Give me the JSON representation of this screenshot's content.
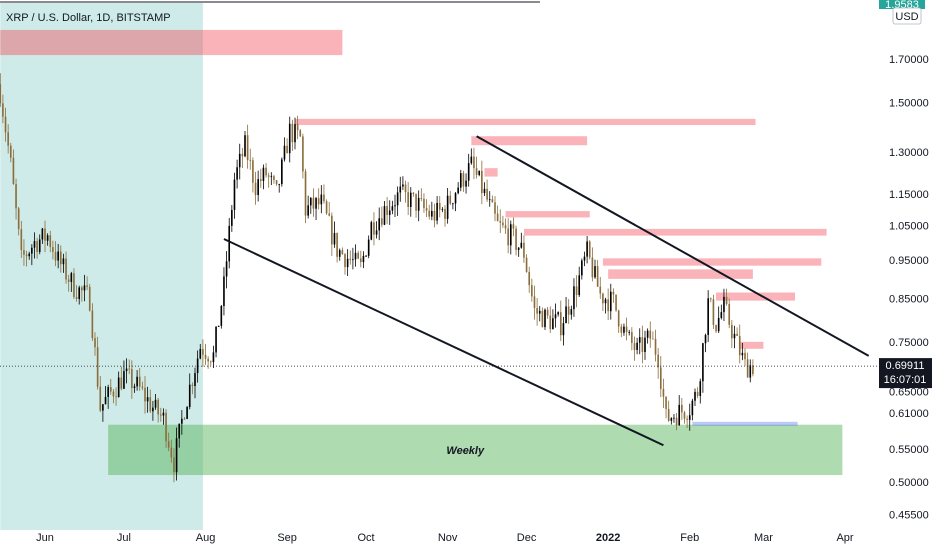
{
  "chart_data": {
    "type": "candlestick",
    "title": "XRP / U.S. Dollar, 1D, BITSTAMP",
    "currency": "USD",
    "top_tag": "1.9583",
    "y_scale": "log",
    "ylim": [
      0.435,
      2.0
    ],
    "y_ticks": [
      "1.70000",
      "1.50000",
      "1.30000",
      "1.15000",
      "1.05000",
      "0.95000",
      "0.85000",
      "0.75000",
      "0.65000",
      "0.61000",
      "0.55000",
      "0.50000",
      "0.45500"
    ],
    "x_ticks": [
      {
        "label": "Jun",
        "date": "2021-06-01"
      },
      {
        "label": "Jul",
        "date": "2021-07-01"
      },
      {
        "label": "Aug",
        "date": "2021-08-01"
      },
      {
        "label": "Sep",
        "date": "2021-09-01"
      },
      {
        "label": "Oct",
        "date": "2021-10-01"
      },
      {
        "label": "Nov",
        "date": "2021-11-01"
      },
      {
        "label": "Dec",
        "date": "2021-12-01"
      },
      {
        "label": "2022",
        "date": "2022-01-01"
      },
      {
        "label": "Feb",
        "date": "2022-02-01"
      },
      {
        "label": "Mar",
        "date": "2022-03-01"
      },
      {
        "label": "Apr",
        "date": "2022-04-01"
      }
    ],
    "last_price": "0.69911",
    "last_price_value": 0.69911,
    "countdown": "16:07:01",
    "colors": {
      "up": "#000000",
      "down": "#8a6d3b",
      "teal": "#b2dfdb",
      "green": "#81c784",
      "red": "#f28b82",
      "blue": "#90a4e8",
      "price_tag": "#131722",
      "usd_tag": "#26a69a"
    },
    "close_path": [
      [
        "2021-05-15",
        1.55
      ],
      [
        "2021-05-19",
        1.25
      ],
      [
        "2021-05-23",
        0.95
      ],
      [
        "2021-05-28",
        1.0
      ],
      [
        "2021-06-02",
        1.02
      ],
      [
        "2021-06-06",
        0.95
      ],
      [
        "2021-06-12",
        0.88
      ],
      [
        "2021-06-18",
        0.85
      ],
      [
        "2021-06-22",
        0.62
      ],
      [
        "2021-06-25",
        0.64
      ],
      [
        "2021-07-01",
        0.68
      ],
      [
        "2021-07-06",
        0.66
      ],
      [
        "2021-07-12",
        0.62
      ],
      [
        "2021-07-16",
        0.6
      ],
      [
        "2021-07-20",
        0.53
      ],
      [
        "2021-07-24",
        0.62
      ],
      [
        "2021-07-30",
        0.74
      ],
      [
        "2021-08-04",
        0.72
      ],
      [
        "2021-08-08",
        0.88
      ],
      [
        "2021-08-12",
        1.2
      ],
      [
        "2021-08-16",
        1.32
      ],
      [
        "2021-08-20",
        1.18
      ],
      [
        "2021-08-24",
        1.22
      ],
      [
        "2021-08-28",
        1.15
      ],
      [
        "2021-09-02",
        1.38
      ],
      [
        "2021-09-06",
        1.35
      ],
      [
        "2021-09-08",
        1.1
      ],
      [
        "2021-09-14",
        1.12
      ],
      [
        "2021-09-20",
        0.98
      ],
      [
        "2021-09-25",
        0.95
      ],
      [
        "2021-09-29",
        0.93
      ],
      [
        "2021-10-03",
        1.05
      ],
      [
        "2021-10-08",
        1.1
      ],
      [
        "2021-10-14",
        1.15
      ],
      [
        "2021-10-20",
        1.12
      ],
      [
        "2021-10-26",
        1.08
      ],
      [
        "2021-10-31",
        1.1
      ],
      [
        "2021-11-05",
        1.18
      ],
      [
        "2021-11-10",
        1.25
      ],
      [
        "2021-11-15",
        1.15
      ],
      [
        "2021-11-20",
        1.05
      ],
      [
        "2021-11-25",
        1.02
      ],
      [
        "2021-11-30",
        0.97
      ],
      [
        "2021-12-04",
        0.82
      ],
      [
        "2021-12-09",
        0.8
      ],
      [
        "2021-12-14",
        0.79
      ],
      [
        "2021-12-20",
        0.88
      ],
      [
        "2021-12-24",
        0.97
      ],
      [
        "2021-12-29",
        0.86
      ],
      [
        "2022-01-03",
        0.84
      ],
      [
        "2022-01-08",
        0.76
      ],
      [
        "2022-01-12",
        0.73
      ],
      [
        "2022-01-17",
        0.76
      ],
      [
        "2022-01-20",
        0.72
      ],
      [
        "2022-01-23",
        0.6
      ],
      [
        "2022-01-27",
        0.61
      ],
      [
        "2022-02-01",
        0.62
      ],
      [
        "2022-02-04",
        0.65
      ],
      [
        "2022-02-08",
        0.84
      ],
      [
        "2022-02-11",
        0.79
      ],
      [
        "2022-02-14",
        0.83
      ],
      [
        "2022-02-18",
        0.76
      ],
      [
        "2022-02-22",
        0.7
      ],
      [
        "2022-02-25",
        0.7
      ]
    ],
    "zones": [
      {
        "kind": "teal",
        "x0": "2021-05-15",
        "x1": "2021-07-31",
        "y0": 0.435,
        "y1": 2.0
      },
      {
        "kind": "green",
        "label": "Weekly",
        "x0": "2021-06-25",
        "x1": "2022-03-31",
        "y0": 0.51,
        "y1": 0.59
      },
      {
        "kind": "red",
        "x0": "2021-05-15",
        "x1": "2021-09-22",
        "y0": 1.72,
        "y1": 1.85
      },
      {
        "kind": "red",
        "x0": "2021-09-04",
        "x1": "2022-02-26",
        "y0": 1.405,
        "y1": 1.43
      },
      {
        "kind": "red",
        "x0": "2021-11-10",
        "x1": "2021-12-24",
        "y0": 1.325,
        "y1": 1.36
      },
      {
        "kind": "red",
        "x0": "2021-11-15",
        "x1": "2021-11-20",
        "y0": 1.21,
        "y1": 1.24
      },
      {
        "kind": "red",
        "x0": "2021-11-23",
        "x1": "2021-12-25",
        "y0": 1.075,
        "y1": 1.095
      },
      {
        "kind": "red",
        "x0": "2021-11-30",
        "x1": "2022-03-25",
        "y0": 1.02,
        "y1": 1.04
      },
      {
        "kind": "red",
        "x0": "2021-12-30",
        "x1": "2022-03-23",
        "y0": 0.935,
        "y1": 0.955
      },
      {
        "kind": "red",
        "x0": "2022-01-01",
        "x1": "2022-02-25",
        "y0": 0.9,
        "y1": 0.925
      },
      {
        "kind": "red",
        "x0": "2022-02-11",
        "x1": "2022-03-13",
        "y0": 0.845,
        "y1": 0.865
      },
      {
        "kind": "red",
        "x0": "2022-02-20",
        "x1": "2022-03-01",
        "y0": 0.735,
        "y1": 0.75
      },
      {
        "kind": "blue",
        "x0": "2022-02-02",
        "x1": "2022-03-14",
        "y0": 0.588,
        "y1": 0.595
      }
    ],
    "trendlines": [
      {
        "from": [
          "2021-08-08",
          1.01
        ],
        "to": [
          "2022-01-22",
          0.556
        ]
      },
      {
        "from": [
          "2021-11-12",
          1.36
        ],
        "to": [
          "2022-04-10",
          0.72
        ]
      }
    ]
  }
}
